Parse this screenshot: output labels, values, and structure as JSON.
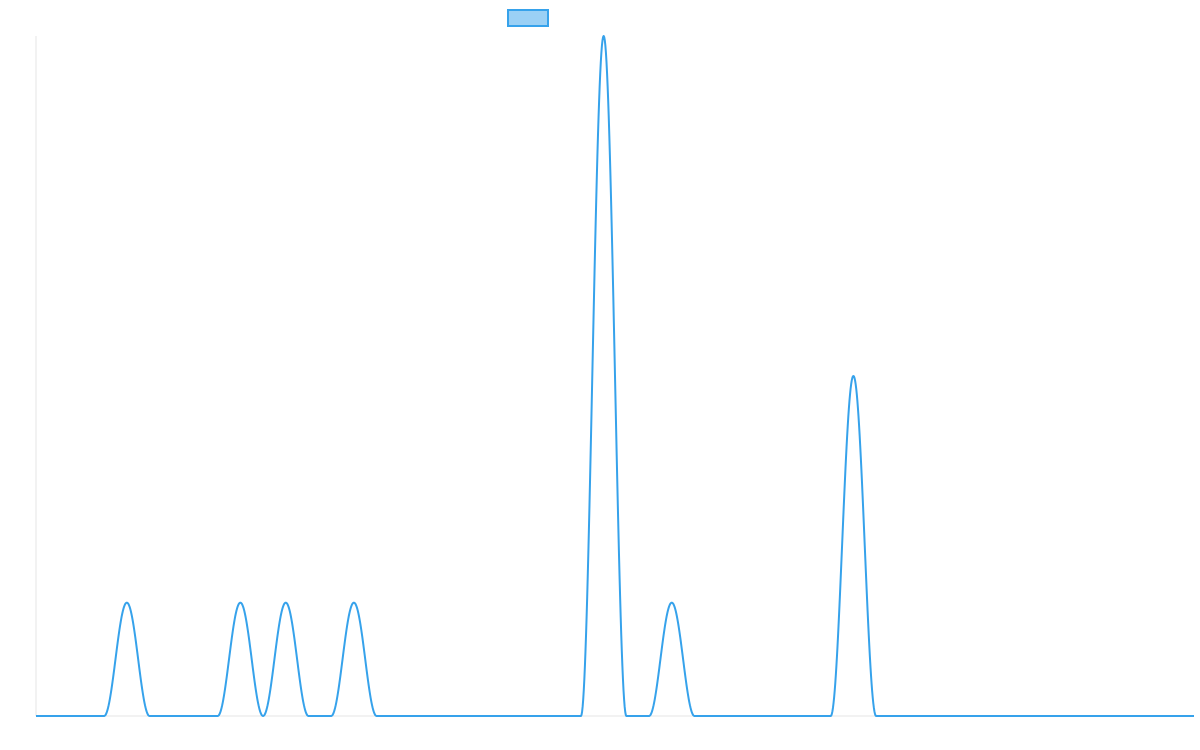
{
  "chart_data": {
    "type": "line",
    "title": "",
    "xlabel": "",
    "ylabel": "",
    "legend": {
      "position": "top-center",
      "labels": [
        ""
      ]
    },
    "xlim": [
      0,
      102
    ],
    "ylim": [
      0,
      3
    ],
    "grid": false,
    "series": [
      {
        "color": "#36a2eb",
        "fill": "#9ad0f5",
        "peaks": [
          {
            "x": 8,
            "y": 0.5
          },
          {
            "x": 18,
            "y": 0.5
          },
          {
            "x": 22,
            "y": 0.5
          },
          {
            "x": 28,
            "y": 0.5
          },
          {
            "x": 50,
            "y": 3
          },
          {
            "x": 56,
            "y": 0.5
          },
          {
            "x": 72,
            "y": 1.5
          }
        ],
        "peak_half_width": 2
      }
    ]
  }
}
